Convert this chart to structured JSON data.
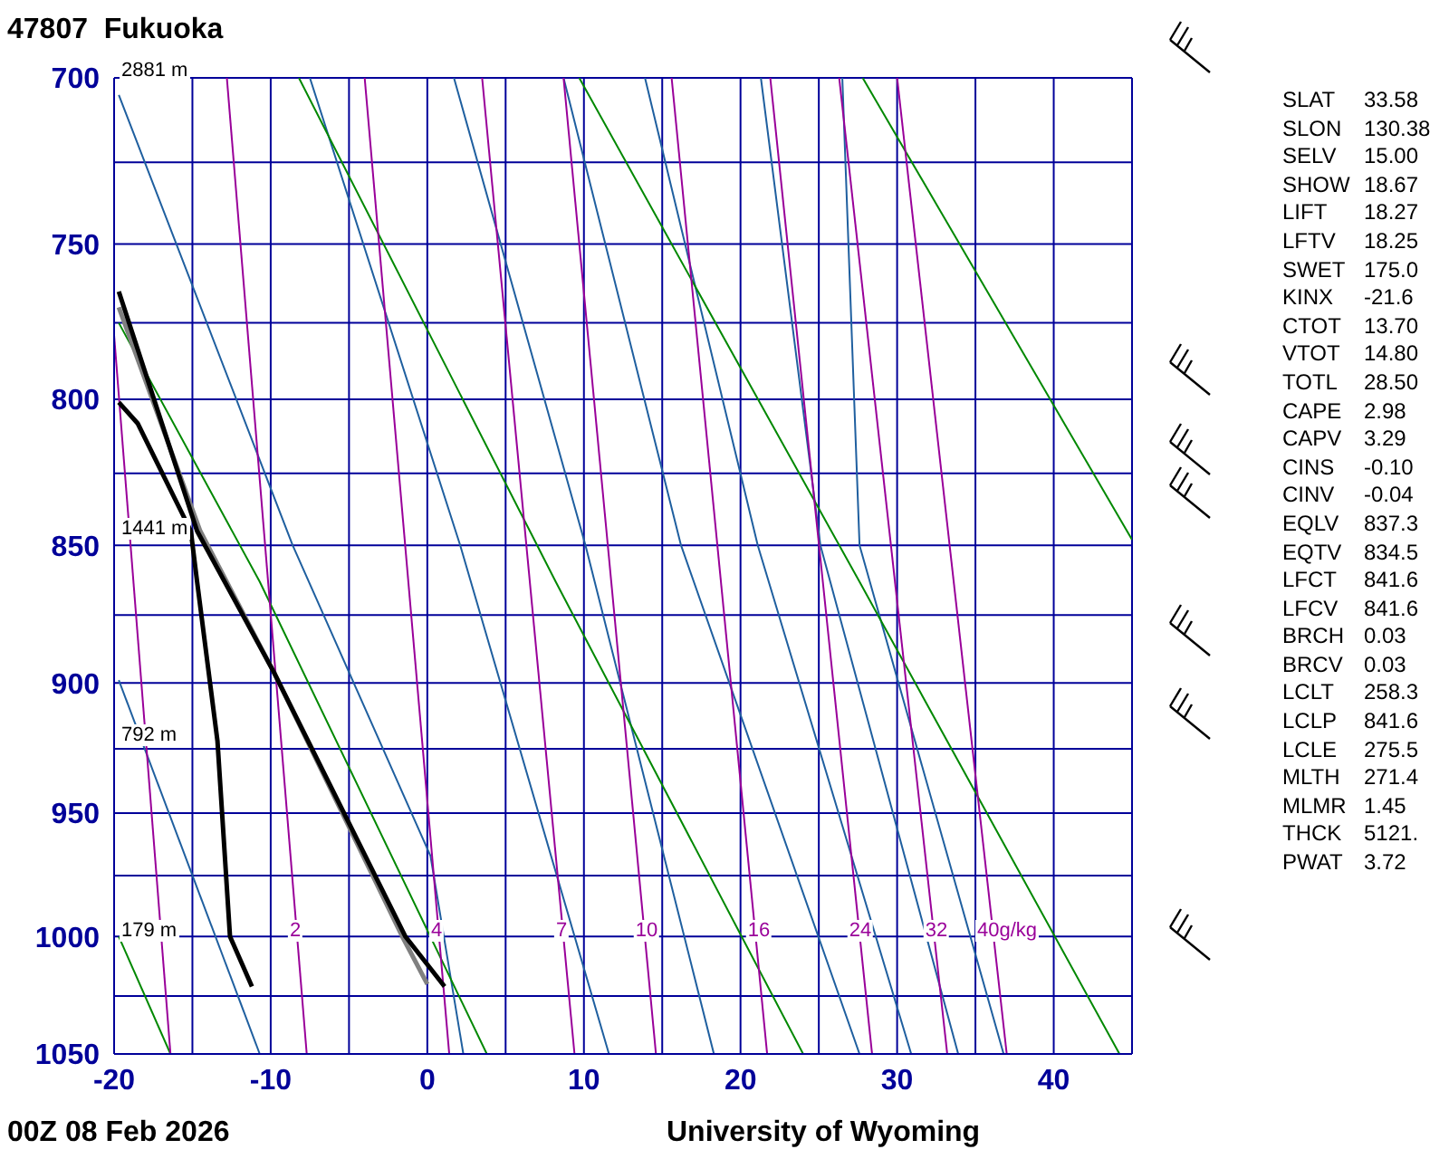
{
  "chart_data": [
    {
      "type": "line",
      "title": "47807  Fukuoka",
      "subtitle": "00Z 08 Feb 2026",
      "annotations": [
        "University of Wyoming",
        "2881 m",
        "1441 m",
        "792 m",
        "179 m",
        "2",
        "4",
        "7",
        "10",
        "16",
        "24",
        "32",
        "40g/kg"
      ],
      "xlim": [
        -20,
        45
      ],
      "xticks": [
        -20,
        {
          "value": -15,
          "label": null
        },
        -10,
        {
          "value": -5,
          "label": null
        },
        0,
        {
          "value": 5,
          "label": null
        },
        10,
        {
          "value": 15,
          "label": null
        },
        20,
        {
          "value": 25,
          "label": null
        },
        30,
        {
          "value": 35,
          "label": null
        },
        40,
        {
          "value": 45,
          "label": null
        }
      ],
      "ylim": [
        1050,
        700
      ],
      "yticks": [
        700,
        {
          "value": 725,
          "label": null
        },
        750,
        {
          "value": 775,
          "label": null
        },
        800,
        {
          "value": 825,
          "label": null
        },
        850,
        {
          "value": 875,
          "label": null
        },
        900,
        {
          "value": 925,
          "label": null
        },
        950,
        {
          "value": 975,
          "label": null
        },
        1000,
        {
          "value": 1025,
          "label": null
        },
        1050
      ],
      "log": "y",
      "grid": true,
      "series": [
        {
          "color": "#000000",
          "x": [
            -19.7,
            -14.7,
            -9.8,
            -1.4,
            1.1
          ],
          "values": [
            765,
            845,
            896,
            1000,
            1021
          ]
        },
        {
          "color": "#000000",
          "x": [
            -19.7,
            -18.5,
            -15.1,
            -14.7,
            -13.4,
            -12.6,
            -11.2
          ],
          "values": [
            801,
            808,
            845,
            863,
            922,
            1000,
            1021
          ]
        },
        {
          "color": "#808080",
          "x": [
            -19.7,
            -14.5,
            -9.8,
            -1.6,
            0.0
          ],
          "values": [
            770,
            845,
            896,
            1000,
            1020
          ]
        },
        {
          "color": "#990099",
          "x": [
            -20,
            -16.4
          ],
          "values": [
            779,
            1050
          ]
        },
        {
          "color": "#990099",
          "x": [
            -12.8,
            -7.7
          ],
          "values": [
            700,
            1050
          ]
        },
        {
          "color": "#990099",
          "x": [
            -4.0,
            1.4
          ],
          "values": [
            700,
            1050
          ]
        },
        {
          "color": "#990099",
          "x": [
            3.5,
            9.4
          ],
          "values": [
            700,
            1050
          ]
        },
        {
          "color": "#990099",
          "x": [
            8.7,
            14.6
          ],
          "values": [
            700,
            1050
          ]
        },
        {
          "color": "#990099",
          "x": [
            15.6,
            21.7
          ],
          "values": [
            700,
            1050
          ]
        },
        {
          "color": "#990099",
          "x": [
            21.9,
            28.4
          ],
          "values": [
            700,
            1050
          ]
        },
        {
          "color": "#990099",
          "x": [
            26.3,
            33.2
          ],
          "values": [
            700,
            1050
          ]
        },
        {
          "color": "#990099",
          "x": [
            30.0,
            37.0
          ],
          "values": [
            700,
            1050
          ]
        },
        {
          "color": "#008800",
          "x": [
            -19.7,
            -10.7,
            3.8
          ],
          "values": [
            775,
            863,
            1050
          ]
        },
        {
          "color": "#008800",
          "x": [
            -8.2,
            8.2,
            24.0
          ],
          "values": [
            700,
            863,
            1050
          ]
        },
        {
          "color": "#008800",
          "x": [
            9.7,
            27.6,
            44.2
          ],
          "values": [
            700,
            863,
            1050
          ]
        },
        {
          "color": "#008800",
          "x": [
            27.8,
            45
          ],
          "values": [
            700,
            848
          ]
        },
        {
          "color": "#008800",
          "x": [
            -19.7,
            -16.4
          ],
          "values": [
            1000,
            1050
          ]
        },
        {
          "color": "#1f5f9f",
          "x": [
            -19.7,
            -10.7
          ],
          "values": [
            899,
            1050
          ]
        },
        {
          "color": "#1f5f9f",
          "x": [
            -19.7,
            -8.6,
            0.2,
            2.3
          ],
          "values": [
            705,
            850,
            967,
            1050
          ]
        },
        {
          "color": "#1f5f9f",
          "x": [
            -7.5,
            2.1,
            11.6
          ],
          "values": [
            700,
            850,
            1050
          ]
        },
        {
          "color": "#1f5f9f",
          "x": [
            1.7,
            10.1,
            18.3
          ],
          "values": [
            700,
            850,
            1050
          ]
        },
        {
          "color": "#1f5f9f",
          "x": [
            8.7,
            16.2,
            27.6
          ],
          "values": [
            700,
            850,
            1050
          ]
        },
        {
          "color": "#1f5f9f",
          "x": [
            13.9,
            21.1,
            30.9
          ],
          "values": [
            700,
            850,
            1050
          ]
        },
        {
          "color": "#1f5f9f",
          "x": [
            21.3,
            25.1,
            33.9
          ],
          "values": [
            700,
            850,
            1050
          ]
        },
        {
          "color": "#1f5f9f",
          "x": [
            26.5,
            27.6,
            36.8
          ],
          "values": [
            700,
            850,
            1050
          ]
        }
      ]
    },
    {
      "type": "other",
      "annotations": [
        "SLAT 33.58",
        "SLON 130.38",
        "SELV 15.00",
        "SHOW 18.67",
        "LIFT 18.27",
        "LFTV 18.25",
        "SWET 175.0",
        "KINX -21.6",
        "CTOT 13.70",
        "VTOT 14.80",
        "TOTL 28.50",
        "CAPE 2.98",
        "CAPV 3.29",
        "CINS -0.10",
        "CINV -0.04",
        "EQLV 837.3",
        "EQTV 834.5",
        "LFCT 841.6",
        "LFCV 841.6",
        "BRCH 0.03",
        "BRCV 0.03",
        "LCLT 258.3",
        "LCLP 841.6",
        "LCLE 275.5",
        "MLTH 271.4",
        "MLMR 1.45",
        "THCK 5121.",
        "PWAT 3.72"
      ]
    }
  ]
}
